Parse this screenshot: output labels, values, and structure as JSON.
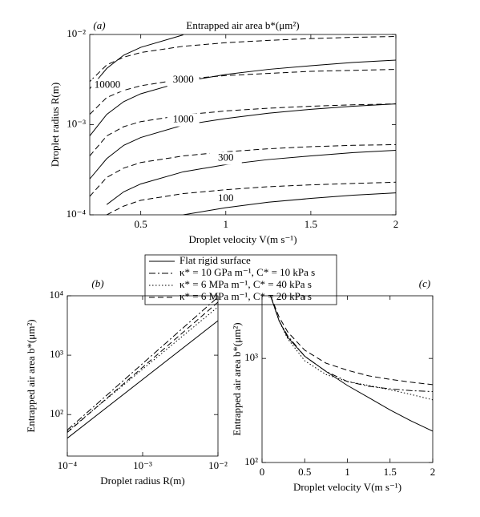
{
  "chart_data": [
    {
      "type": "contour",
      "label": "(a)",
      "title": "Entrapped air area b*(μm²)",
      "xlabel": "Droplet velocity V(m s⁻¹)",
      "ylabel": "Droplet radius R(m)",
      "xscale": "linear",
      "yscale": "log",
      "xlim": [
        0.2,
        2
      ],
      "ylim": [
        0.0001,
        0.01
      ],
      "xticks": [
        0.5,
        1,
        1.5,
        2
      ],
      "yticks": [
        {
          "value": 0.0001,
          "label": "10⁻⁴"
        },
        {
          "value": 0.001,
          "label": "10⁻³"
        },
        {
          "value": 0.01,
          "label": "10⁻²"
        }
      ],
      "color": "#000000",
      "x": [
        0.2,
        0.3,
        0.4,
        0.5,
        0.75,
        1,
        1.25,
        1.5,
        1.75,
        2
      ],
      "contours": [
        {
          "level": 100,
          "solid": [
            null,
            null,
            null,
            null,
            0.0001,
            0.00012,
            0.000138,
            0.000152,
            0.000165,
            0.000175
          ],
          "dashed": [
            null,
            0.0001,
            0.000125,
            0.000145,
            0.000172,
            0.00019,
            0.000205,
            0.000215,
            0.000223,
            0.00023
          ]
        },
        {
          "level": 300,
          "solid": [
            null,
            0.00013,
            0.00018,
            0.00022,
            0.0003,
            0.00036,
            0.00041,
            0.00045,
            0.00049,
            0.00052
          ],
          "dashed": [
            0.00016,
            0.00026,
            0.00033,
            0.00038,
            0.00045,
            0.0005,
            0.00054,
            0.00057,
            0.00059,
            0.0006
          ]
        },
        {
          "level": 1000,
          "solid": [
            0.00025,
            0.00042,
            0.00059,
            0.00072,
            0.00099,
            0.00117,
            0.00134,
            0.00148,
            0.0016,
            0.0017
          ],
          "dashed": [
            0.00045,
            0.00075,
            0.00095,
            0.00108,
            0.00128,
            0.00142,
            0.00152,
            0.0016,
            0.00166,
            0.0017
          ]
        },
        {
          "level": 3000,
          "solid": [
            0.00075,
            0.0013,
            0.0018,
            0.0022,
            0.003,
            0.0036,
            0.0041,
            0.0045,
            0.0049,
            0.0052
          ],
          "dashed": [
            0.0013,
            0.002,
            0.0024,
            0.0027,
            0.0032,
            0.0035,
            0.0037,
            0.0039,
            0.004,
            0.0041
          ]
        },
        {
          "level": 10000,
          "solid": [
            0.0025,
            0.0042,
            0.0059,
            0.0072,
            0.0099,
            null,
            null,
            null,
            null,
            null
          ],
          "dashed": [
            0.003,
            0.0046,
            0.0056,
            0.0063,
            0.0074,
            0.0081,
            0.0086,
            0.009,
            0.0093,
            0.0095
          ]
        }
      ]
    },
    {
      "type": "line",
      "label": "(b)",
      "xlabel": "Droplet radius R(m)",
      "ylabel": "Entrapped air area b*(μm²)",
      "xscale": "log",
      "yscale": "log",
      "xlim": [
        0.0001,
        0.01
      ],
      "ylim": [
        20,
        10000
      ],
      "xticks": [
        {
          "value": 0.0001,
          "label": "10⁻⁴"
        },
        {
          "value": 0.001,
          "label": "10⁻³"
        },
        {
          "value": 0.01,
          "label": "10⁻²"
        }
      ],
      "yticks": [
        {
          "value": 100,
          "label": "10²"
        },
        {
          "value": 1000,
          "label": "10³"
        },
        {
          "value": 10000,
          "label": "10⁴"
        }
      ],
      "x": [
        0.0001,
        0.01
      ],
      "series": [
        {
          "name": "Flat rigid surface",
          "style": "solid",
          "color": "#000000",
          "values": [
            40,
            3800
          ]
        },
        {
          "name": "κ* = 10 GPa m⁻¹, C* = 10 kPa s",
          "style": "dashdot",
          "color": "#000000",
          "values": [
            55,
            9500
          ]
        },
        {
          "name": "κ* = 6 MPa m⁻¹, C* = 40 kPa s",
          "style": "dotted",
          "color": "#000000",
          "values": [
            52,
            6500
          ]
        },
        {
          "name": "κ* = 6 MPa m⁻¹, C* = 20 kPa s",
          "style": "dashed",
          "color": "#000000",
          "values": [
            50,
            7800
          ]
        }
      ]
    },
    {
      "type": "line",
      "label": "(c)",
      "xlabel": "Droplet velocity V(m s⁻¹)",
      "ylabel": "Entrapped air area b*(μm²)",
      "xscale": "linear",
      "yscale": "log",
      "xlim": [
        0,
        2
      ],
      "ylim": [
        100,
        4000
      ],
      "xticks": [
        0,
        0.5,
        1,
        1.5,
        2
      ],
      "yticks": [
        {
          "value": 100,
          "label": "10²"
        },
        {
          "value": 1000,
          "label": "10³"
        }
      ],
      "x": [
        0.1,
        0.2,
        0.3,
        0.5,
        0.75,
        1,
        1.25,
        1.5,
        1.75,
        2
      ],
      "series": [
        {
          "style": "solid",
          "color": "#000000",
          "values": [
            4000,
            2300,
            1600,
            1050,
            750,
            550,
            420,
            320,
            250,
            200
          ]
        },
        {
          "style": "dashdot",
          "color": "#000000",
          "values": [
            4000,
            2300,
            1650,
            1050,
            750,
            600,
            540,
            510,
            490,
            480
          ]
        },
        {
          "style": "dotted",
          "color": "#000000",
          "values": [
            4000,
            2300,
            1550,
            950,
            700,
            600,
            550,
            500,
            450,
            400
          ]
        },
        {
          "style": "dashed",
          "color": "#000000",
          "values": [
            4000,
            2500,
            1800,
            1200,
            900,
            770,
            680,
            630,
            590,
            560
          ]
        }
      ]
    }
  ]
}
